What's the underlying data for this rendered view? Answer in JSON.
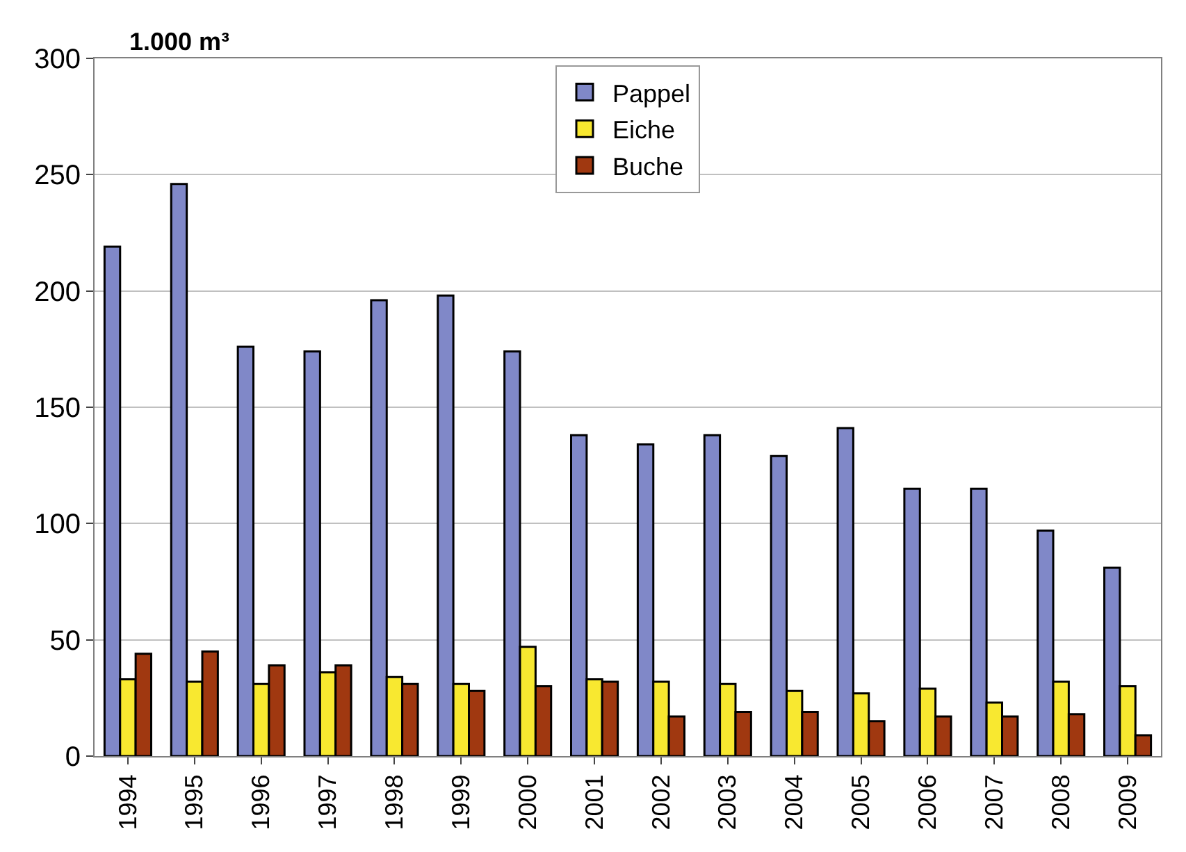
{
  "chart_data": {
    "type": "bar",
    "ylabel": "1.000 m³",
    "categories": [
      "1994",
      "1995",
      "1996",
      "1997",
      "1998",
      "1999",
      "2000",
      "2001",
      "2002",
      "2003",
      "2004",
      "2005",
      "2006",
      "2007",
      "2008",
      "2009"
    ],
    "series": [
      {
        "name": "Pappel",
        "color": "#8088c8",
        "values": [
          219,
          246,
          176,
          174,
          196,
          198,
          174,
          138,
          134,
          138,
          129,
          141,
          115,
          115,
          97,
          81
        ]
      },
      {
        "name": "Eiche",
        "color": "#f8e830",
        "values": [
          33,
          32,
          31,
          36,
          34,
          31,
          47,
          33,
          32,
          31,
          28,
          27,
          29,
          23,
          32,
          30
        ]
      },
      {
        "name": "Buche",
        "color": "#a03810",
        "values": [
          44,
          45,
          39,
          39,
          31,
          28,
          30,
          32,
          17,
          19,
          19,
          15,
          17,
          17,
          18,
          9
        ]
      }
    ],
    "ylim": [
      0,
      300
    ],
    "yticks": [
      0,
      50,
      100,
      150,
      200,
      250,
      300
    ],
    "grid": "y",
    "legend": "top"
  }
}
